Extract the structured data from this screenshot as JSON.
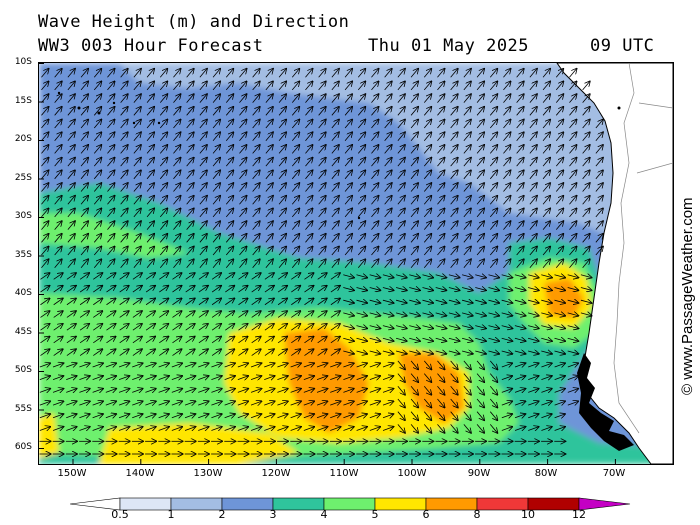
{
  "header": {
    "title": "Wave Height (m) and Direction",
    "model": "WW3 003 Hour Forecast",
    "date": "Thu 01 May 2025",
    "time": "09 UTC"
  },
  "map": {
    "lat_labels": [
      "10S",
      "15S",
      "20S",
      "25S",
      "30S",
      "35S",
      "40S",
      "45S",
      "50S",
      "55S",
      "60S"
    ],
    "lon_labels": [
      "150W",
      "140W",
      "130W",
      "120W",
      "110W",
      "100W",
      "90W",
      "80W",
      "70W"
    ],
    "colors": {
      "land": "#ffffff",
      "coast": "#000000",
      "border": "#888888",
      "arrow": "#000000"
    }
  },
  "legend": {
    "labels": [
      "0.5",
      "1",
      "2",
      "3",
      "4",
      "5",
      "6",
      "8",
      "10",
      "12"
    ],
    "colors": [
      "#ffffff",
      "#dde6f6",
      "#a3bde3",
      "#6e95d8",
      "#2fc49c",
      "#6ef06e",
      "#ffe600",
      "#ff9a00",
      "#f03838",
      "#b00000",
      "#c400c4"
    ],
    "units": "m"
  },
  "watermark": "© www.PassageWeather.com"
}
